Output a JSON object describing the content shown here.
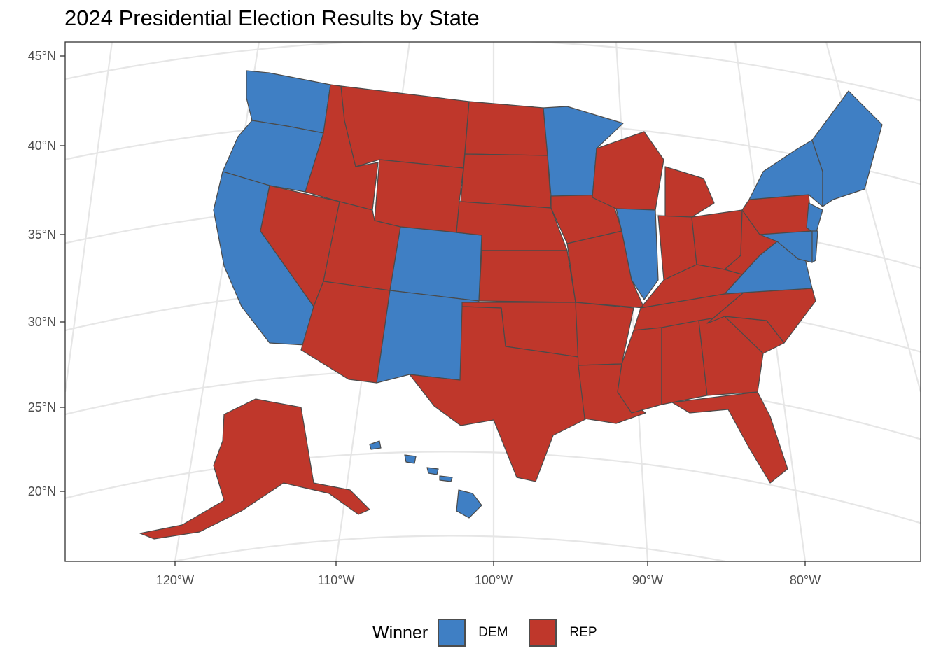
{
  "title": "2024 Presidential Election Results by State",
  "colors": {
    "DEM": "#3f7fc4",
    "REP": "#bf372b",
    "border": "#4a4a4a",
    "gridline": "#e6e6e6",
    "panel_border": "#333333"
  },
  "axes": {
    "lat_ticks": [
      "45°N",
      "40°N",
      "35°N",
      "30°N",
      "25°N",
      "20°N"
    ],
    "lon_ticks": [
      "120°W",
      "110°W",
      "100°W",
      "90°W",
      "80°W"
    ]
  },
  "legend": {
    "title": "Winner",
    "entries": [
      {
        "key": "DEM",
        "label": "DEM"
      },
      {
        "key": "REP",
        "label": "REP"
      }
    ]
  },
  "regions": [
    {
      "name": "Washington",
      "winner": "DEM"
    },
    {
      "name": "Oregon",
      "winner": "DEM"
    },
    {
      "name": "California",
      "winner": "DEM"
    },
    {
      "name": "Idaho",
      "winner": "REP"
    },
    {
      "name": "Nevada",
      "winner": "REP"
    },
    {
      "name": "Montana",
      "winner": "REP"
    },
    {
      "name": "Wyoming",
      "winner": "REP"
    },
    {
      "name": "Utah",
      "winner": "REP"
    },
    {
      "name": "Arizona",
      "winner": "REP"
    },
    {
      "name": "Colorado",
      "winner": "DEM"
    },
    {
      "name": "New Mexico",
      "winner": "DEM"
    },
    {
      "name": "North Dakota",
      "winner": "REP"
    },
    {
      "name": "South Dakota",
      "winner": "REP"
    },
    {
      "name": "Nebraska",
      "winner": "REP"
    },
    {
      "name": "Kansas",
      "winner": "REP"
    },
    {
      "name": "Oklahoma",
      "winner": "REP"
    },
    {
      "name": "Texas",
      "winner": "REP"
    },
    {
      "name": "Minnesota",
      "winner": "DEM"
    },
    {
      "name": "Iowa",
      "winner": "REP"
    },
    {
      "name": "Missouri",
      "winner": "REP"
    },
    {
      "name": "Arkansas",
      "winner": "REP"
    },
    {
      "name": "Louisiana",
      "winner": "REP"
    },
    {
      "name": "Wisconsin",
      "winner": "REP"
    },
    {
      "name": "Illinois",
      "winner": "DEM"
    },
    {
      "name": "Michigan",
      "winner": "REP"
    },
    {
      "name": "Indiana",
      "winner": "REP"
    },
    {
      "name": "Ohio",
      "winner": "REP"
    },
    {
      "name": "Kentucky",
      "winner": "REP"
    },
    {
      "name": "Tennessee",
      "winner": "REP"
    },
    {
      "name": "Mississippi",
      "winner": "REP"
    },
    {
      "name": "Alabama",
      "winner": "REP"
    },
    {
      "name": "Georgia",
      "winner": "REP"
    },
    {
      "name": "Florida",
      "winner": "REP"
    },
    {
      "name": "South Carolina",
      "winner": "REP"
    },
    {
      "name": "North Carolina",
      "winner": "REP"
    },
    {
      "name": "Virginia",
      "winner": "DEM"
    },
    {
      "name": "West Virginia",
      "winner": "REP"
    },
    {
      "name": "Pennsylvania",
      "winner": "REP"
    },
    {
      "name": "New York",
      "winner": "DEM"
    },
    {
      "name": "New Jersey",
      "winner": "DEM"
    },
    {
      "name": "Maryland",
      "winner": "DEM"
    },
    {
      "name": "Delaware",
      "winner": "DEM"
    },
    {
      "name": "New England",
      "winner": "DEM"
    },
    {
      "name": "Alaska",
      "winner": "REP"
    },
    {
      "name": "Hawaii",
      "winner": "DEM"
    }
  ]
}
